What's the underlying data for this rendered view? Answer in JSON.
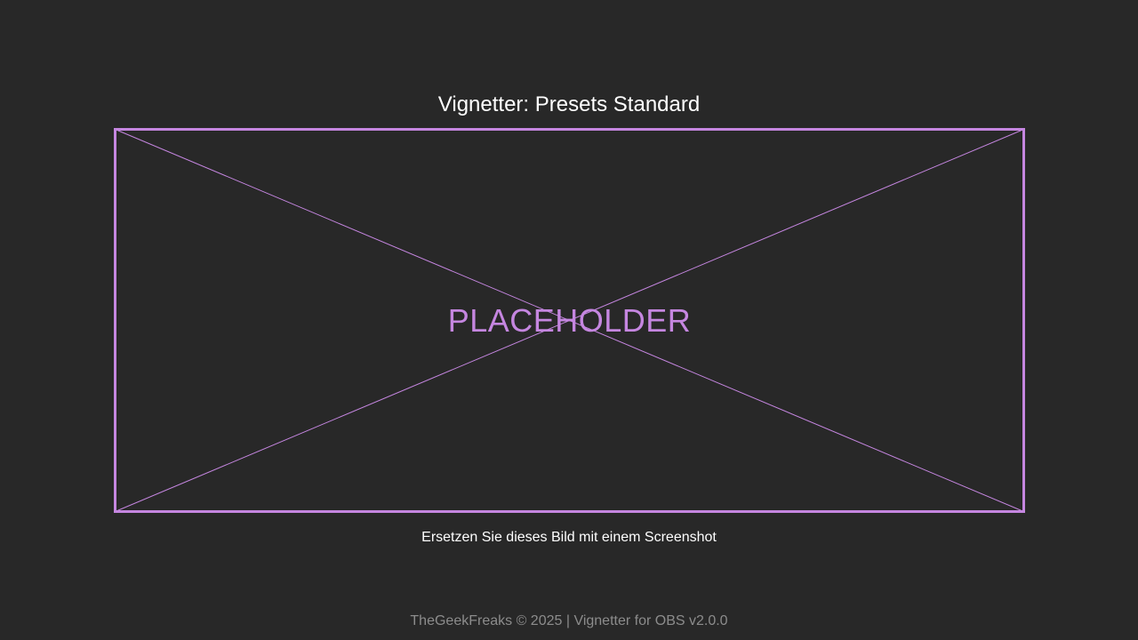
{
  "page": {
    "title": "Vignetter: Presets Standard",
    "placeholder_label": "PLACEHOLDER",
    "caption": "Ersetzen Sie dieses Bild mit einem Screenshot",
    "footer": "TheGeekFreaks © 2025 | Vignetter for OBS v2.0.0"
  },
  "colors": {
    "background": "#282828",
    "accent": "#c586e0",
    "text": "#ffffff",
    "muted": "#8c8c8c"
  }
}
